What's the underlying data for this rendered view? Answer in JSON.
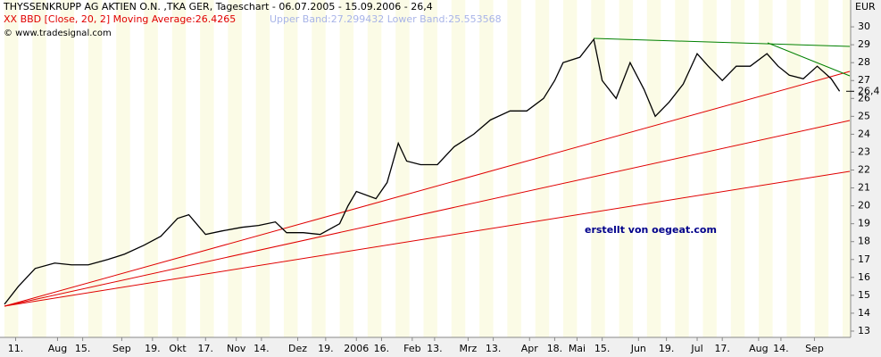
{
  "chart_data": {
    "type": "line",
    "title": "THYSSENKRUPP AG AKTIEN O.N. ,TKA GER, Tageschart - 06.07.2005 - 15.09.2006 - 26,4",
    "indicator": "XX BBD [Close, 20, 2] Moving Average:26.4265",
    "bands_text": "Upper Band:27.299432 Lower Band:25.553568",
    "copyright": "© www.tradesignal.com",
    "y_unit": "EUR",
    "annotation": "erstellt von oegeat.com",
    "series": [
      {
        "name": "THYSSENKRUPP AG AKTIEN O.N.",
        "color": "#000000",
        "x": [
          0,
          5,
          11,
          18,
          24,
          30,
          37,
          43,
          50,
          56,
          62,
          66,
          72,
          78,
          85,
          91,
          97,
          101,
          107,
          113,
          120,
          123,
          126,
          133,
          137,
          141,
          144,
          149,
          155,
          161,
          168,
          174,
          181,
          187,
          193,
          197,
          200,
          206,
          211,
          214,
          219,
          224,
          229,
          233,
          238,
          243,
          248,
          252,
          257,
          262,
          267,
          273,
          277,
          281,
          286,
          291,
          296,
          299
        ],
        "values": [
          14.5,
          15.5,
          16.5,
          16.8,
          16.7,
          16.7,
          17.0,
          17.3,
          17.8,
          18.3,
          19.3,
          19.5,
          18.4,
          18.6,
          18.8,
          18.9,
          19.1,
          18.5,
          18.5,
          18.4,
          19.0,
          20.0,
          20.8,
          20.4,
          21.3,
          23.5,
          22.5,
          22.3,
          22.3,
          23.3,
          24.0,
          24.8,
          25.3,
          25.3,
          26.0,
          27.0,
          28.0,
          28.3,
          29.3,
          27.0,
          26.0,
          28.0,
          26.5,
          25.0,
          25.8,
          26.8,
          28.5,
          27.8,
          27.0,
          27.8,
          27.8,
          28.5,
          27.8,
          27.3,
          27.1,
          27.8,
          27.1,
          26.4
        ]
      }
    ],
    "last_price": {
      "value": 26.4,
      "label": "26,4"
    },
    "xlim": [
      0,
      302
    ],
    "xticks": [
      {
        "value": 4,
        "label": "11."
      },
      {
        "value": 19,
        "label": "Aug"
      },
      {
        "value": 28,
        "label": "15."
      },
      {
        "value": 42,
        "label": "Sep"
      },
      {
        "value": 53,
        "label": "19."
      },
      {
        "value": 62,
        "label": "Okt"
      },
      {
        "value": 72,
        "label": "17."
      },
      {
        "value": 83,
        "label": "Nov"
      },
      {
        "value": 92,
        "label": "14."
      },
      {
        "value": 105,
        "label": "Dez"
      },
      {
        "value": 115,
        "label": "19."
      },
      {
        "value": 126,
        "label": "2006"
      },
      {
        "value": 135,
        "label": "16."
      },
      {
        "value": 146,
        "label": "Feb"
      },
      {
        "value": 154,
        "label": "13."
      },
      {
        "value": 166,
        "label": "Mrz"
      },
      {
        "value": 175,
        "label": "13."
      },
      {
        "value": 188,
        "label": "Apr"
      },
      {
        "value": 197,
        "label": "18."
      },
      {
        "value": 205,
        "label": "Mai"
      },
      {
        "value": 214,
        "label": "15."
      },
      {
        "value": 227,
        "label": "Jun"
      },
      {
        "value": 237,
        "label": "19."
      },
      {
        "value": 248,
        "label": "Jul"
      },
      {
        "value": 257,
        "label": "17."
      },
      {
        "value": 270,
        "label": "Aug"
      },
      {
        "value": 278,
        "label": "14."
      },
      {
        "value": 290,
        "label": "Sep"
      }
    ],
    "ylim": [
      12.65,
      31.5
    ],
    "yticks": [
      13,
      14,
      15,
      16,
      17,
      18,
      19,
      20,
      21,
      22,
      23,
      24,
      25,
      26,
      27,
      28,
      29,
      30
    ],
    "grid": false
  }
}
